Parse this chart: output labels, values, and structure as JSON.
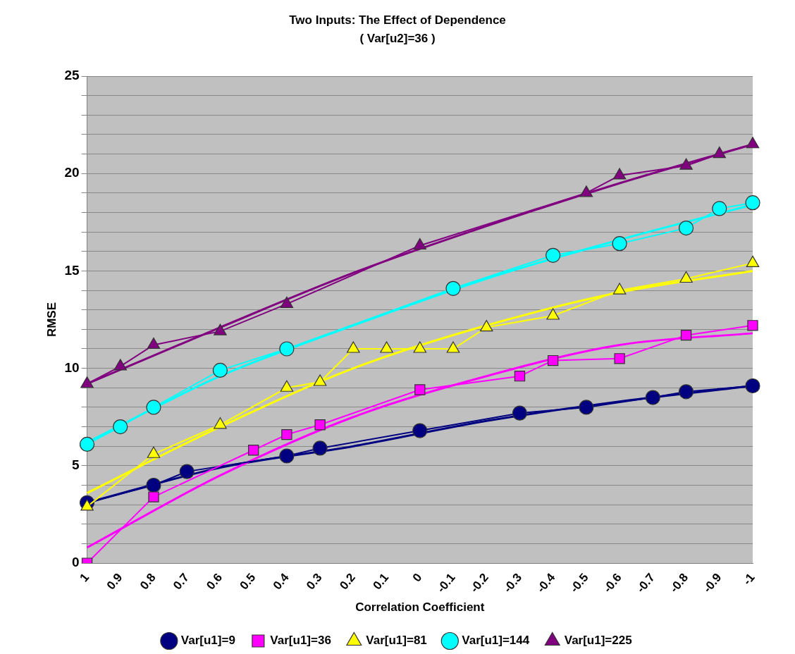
{
  "chart_data": {
    "type": "line",
    "title": "Two Inputs: The Effect of Dependence",
    "subtitle": "( Var[u2]=36 )",
    "xlabel": "Correlation Coefficient",
    "ylabel": "RMSE",
    "categories": [
      "1",
      "0.9",
      "0.8",
      "0.7",
      "0.6",
      "0.5",
      "0.4",
      "0.3",
      "0.2",
      "0.1",
      "0",
      "-0.1",
      "-0.2",
      "-0.3",
      "-0.4",
      "-0.5",
      "-0.6",
      "-0.7",
      "-0.8",
      "-0.9",
      "-1"
    ],
    "ylim": [
      0,
      25
    ],
    "yticks": [
      0,
      {
        "value": 1,
        "label": null
      },
      {
        "value": 2,
        "label": null
      },
      {
        "value": 3,
        "label": null
      },
      {
        "value": 4,
        "label": null
      },
      5,
      {
        "value": 6,
        "label": null
      },
      {
        "value": 7,
        "label": null
      },
      {
        "value": 8,
        "label": null
      },
      {
        "value": 9,
        "label": null
      },
      10,
      {
        "value": 11,
        "label": null
      },
      {
        "value": 12,
        "label": null
      },
      {
        "value": 13,
        "label": null
      },
      {
        "value": 14,
        "label": null
      },
      15,
      {
        "value": 16,
        "label": null
      },
      {
        "value": 17,
        "label": null
      },
      {
        "value": 18,
        "label": null
      },
      {
        "value": 19,
        "label": null
      },
      20,
      {
        "value": 21,
        "label": null
      },
      {
        "value": 22,
        "label": null
      },
      {
        "value": 23,
        "label": null
      },
      {
        "value": 24,
        "label": null
      },
      25
    ],
    "grid": "y",
    "legend": "bottom",
    "line_style": "solid",
    "series": [
      {
        "name": "Var[u1]=9",
        "color": "#000080",
        "marker": "circle",
        "values": [
          3.1,
          null,
          4.0,
          4.7,
          null,
          null,
          5.5,
          5.9,
          null,
          null,
          6.8,
          null,
          null,
          7.7,
          null,
          8.0,
          null,
          8.5,
          8.8,
          null,
          9.1
        ]
      },
      {
        "name": "Var[u1]=36",
        "color": "#ff00ff",
        "marker": "square",
        "values": [
          0,
          null,
          3.4,
          null,
          null,
          5.8,
          6.6,
          7.1,
          null,
          null,
          8.9,
          null,
          null,
          9.6,
          10.4,
          null,
          10.5,
          null,
          11.7,
          null,
          12.2
        ]
      },
      {
        "name": "Var[u1]=81",
        "color": "#ffff00",
        "marker": "triangle",
        "values": [
          2.9,
          null,
          5.6,
          null,
          7.1,
          null,
          9.0,
          9.3,
          11.0,
          11.0,
          11.0,
          11.0,
          12.1,
          null,
          12.7,
          null,
          14.0,
          null,
          14.6,
          null,
          15.4
        ]
      },
      {
        "name": "Var[u1]=144",
        "color": "#00ffff",
        "marker": "circle",
        "values": [
          6.1,
          7.0,
          8.0,
          null,
          9.9,
          null,
          11.0,
          null,
          null,
          null,
          null,
          14.1,
          null,
          null,
          15.8,
          null,
          16.4,
          null,
          17.2,
          18.2,
          18.5
        ]
      },
      {
        "name": "Var[u1]=225",
        "color": "#800080",
        "marker": "triangle",
        "values": [
          9.2,
          10.1,
          11.2,
          null,
          11.9,
          null,
          13.3,
          null,
          null,
          null,
          16.3,
          null,
          null,
          null,
          null,
          19.0,
          19.9,
          null,
          20.4,
          21.0,
          21.5
        ]
      },
      {
        "color": "#000080",
        "marker": "none",
        "values": [
          3.1,
          null,
          null,
          null,
          4.9,
          null,
          null,
          null,
          6.0,
          null,
          null,
          null,
          7.3,
          null,
          null,
          null,
          8.3,
          null,
          null,
          null,
          9.1
        ]
      },
      {
        "color": "#ff00ff",
        "marker": "none",
        "values": [
          0.8,
          null,
          null,
          null,
          4.5,
          null,
          null,
          null,
          7.5,
          null,
          null,
          null,
          9.6,
          null,
          null,
          null,
          11.2,
          null,
          null,
          null,
          11.8
        ]
      },
      {
        "color": "#ffff00",
        "marker": "none",
        "values": [
          3.6,
          null,
          null,
          null,
          7.0,
          null,
          null,
          null,
          10.0,
          null,
          null,
          null,
          12.2,
          null,
          null,
          null,
          13.9,
          null,
          null,
          null,
          15.0
        ]
      },
      {
        "color": "#00ffff",
        "marker": "none",
        "values": [
          6.2,
          null,
          null,
          null,
          9.6,
          null,
          null,
          null,
          12.2,
          null,
          null,
          null,
          14.6,
          null,
          null,
          null,
          16.6,
          null,
          null,
          null,
          18.4
        ]
      },
      {
        "color": "#800080",
        "marker": "none",
        "values": [
          9.2,
          null,
          null,
          null,
          12.1,
          null,
          null,
          null,
          14.9,
          null,
          null,
          null,
          17.3,
          null,
          null,
          null,
          19.5,
          null,
          null,
          null,
          21.5
        ]
      }
    ]
  }
}
